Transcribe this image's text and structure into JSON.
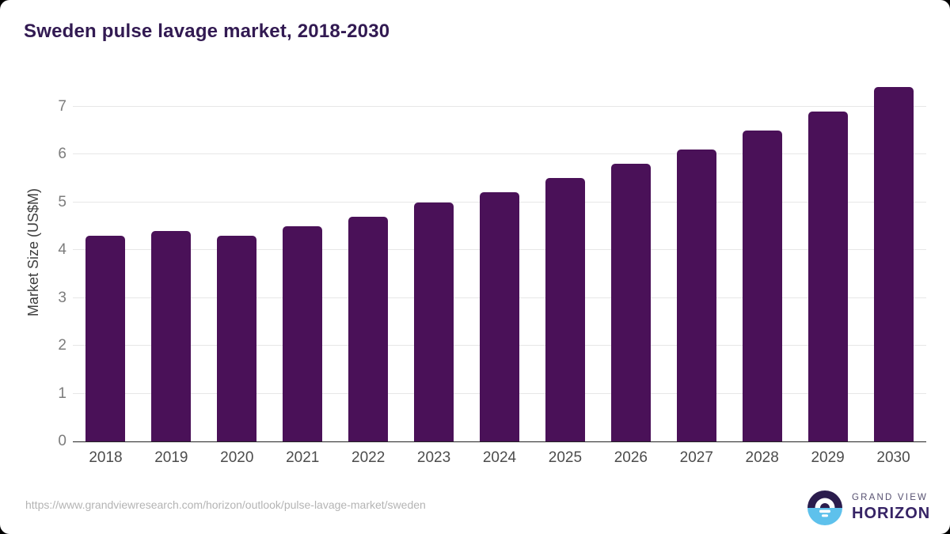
{
  "chart": {
    "title": "Sweden pulse lavage market, 2018-2030",
    "ylabel": "Market Size (US$M)"
  },
  "chart_data": {
    "type": "bar",
    "title": "Sweden pulse lavage market, 2018-2030",
    "categories": [
      "2018",
      "2019",
      "2020",
      "2021",
      "2022",
      "2023",
      "2024",
      "2025",
      "2026",
      "2027",
      "2028",
      "2029",
      "2030"
    ],
    "values": [
      4.3,
      4.4,
      4.3,
      4.5,
      4.7,
      5.0,
      5.2,
      5.5,
      5.8,
      6.1,
      6.5,
      6.9,
      7.4
    ],
    "xlabel": "",
    "ylabel": "Market Size (US$M)",
    "ylim": [
      0,
      7.6
    ],
    "yticks": [
      0,
      1,
      2,
      3,
      4,
      5,
      6,
      7
    ],
    "grid": "horizontal",
    "legend": "none",
    "bar_color": "#4a1158"
  },
  "colors": {
    "title_text": "#321a52",
    "bar": "#4a1158",
    "gridline": "#e7e7e7",
    "axis_line": "#242424",
    "tick_text": "#7c7c7c",
    "xlabel_text": "#4c4c4c",
    "url_text": "#b4b4b4",
    "logo_dark": "#2b1c4d",
    "logo_blue": "#5ec1ec",
    "brand_top_text": "#565070",
    "brand_bottom_text": "#362365"
  },
  "footer": {
    "url": "https://www.grandviewresearch.com/horizon/outlook/pulse-lavage-market/sweden",
    "brand_top": "GRAND VIEW",
    "brand_bottom": "HORIZON"
  }
}
